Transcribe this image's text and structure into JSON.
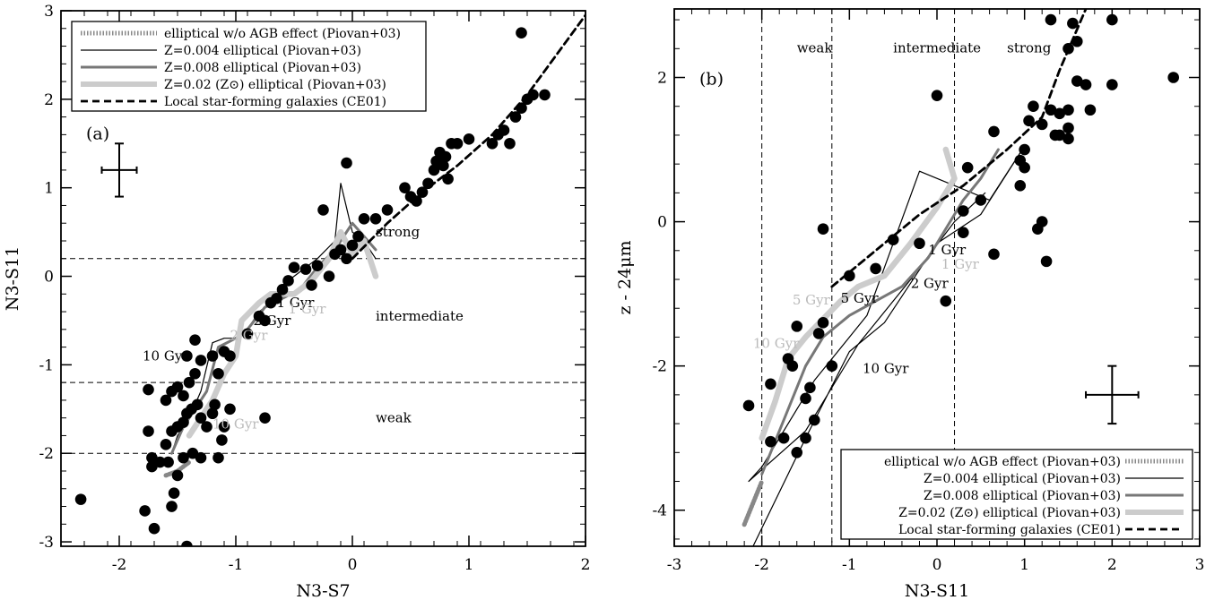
{
  "chart_data": [
    {
      "type": "scatter",
      "panel_label": "(a)",
      "xlabel": "N3-S7",
      "ylabel": "N3-S11",
      "xlim": [
        -2.5,
        2
      ],
      "ylim": [
        -3.05,
        3
      ],
      "xticks": [
        -2,
        -1,
        0,
        1,
        2
      ],
      "yticks": [
        -3,
        -2,
        -1,
        0,
        1,
        2,
        3
      ],
      "xtick_labels": [
        "-2",
        "-1",
        "0",
        "1",
        "2"
      ],
      "ytick_labels": [
        "-3",
        "-2",
        "-1",
        "0",
        "1",
        "2",
        "3"
      ],
      "hlines": [
        0.2,
        -1.2,
        -2.0
      ],
      "regions": [
        {
          "label": "strong",
          "x": 0.2,
          "y": 0.45
        },
        {
          "label": "intermediate",
          "x": 0.2,
          "y": -0.5
        },
        {
          "label": "weak",
          "x": 0.2,
          "y": -1.65
        }
      ],
      "error_bar": {
        "x": -2.0,
        "y": 1.2,
        "dx": 0.15,
        "dy": 0.3
      },
      "legend": {
        "placement": "top-left",
        "entries": [
          {
            "label": "elliptical w/o AGB effect (Piovan+03)",
            "style": "hatched",
            "color": "#888888"
          },
          {
            "label": "Z=0.004 elliptical (Piovan+03)",
            "style": "thin",
            "color": "#000000"
          },
          {
            "label": "Z=0.008 elliptical (Piovan+03)",
            "style": "medium",
            "color": "#777777"
          },
          {
            "label": "Z=0.02 (Z⊙) elliptical (Piovan+03)",
            "style": "thick",
            "color": "#cccccc"
          },
          {
            "label": "Local star-forming galaxies (CE01)",
            "style": "dashed",
            "color": "#000000"
          }
        ]
      },
      "series": [
        {
          "name": "Z=0.004 elliptical (Piovan+03)",
          "x": [
            -1.55,
            -1.5,
            -1.4,
            -1.3,
            -1.2,
            -1.1,
            -1.0,
            -0.9,
            -0.8,
            -0.7,
            -0.6,
            -0.5,
            -0.3,
            -0.15,
            -0.1,
            0.0,
            0.1,
            0.2
          ],
          "y": [
            -2.0,
            -1.8,
            -1.6,
            -1.3,
            -0.75,
            -0.7,
            -0.7,
            -0.6,
            -0.4,
            -0.3,
            -0.1,
            0.0,
            0.2,
            0.4,
            1.05,
            0.5,
            0.4,
            0.2
          ]
        },
        {
          "name": "Z=0.008 elliptical (Piovan+03)",
          "x": [
            -1.55,
            -1.45,
            -1.35,
            -1.25,
            -1.15,
            -1.0,
            -0.9,
            -0.75,
            -0.6,
            -0.45,
            -0.3,
            -0.15,
            0.0,
            0.1,
            0.2
          ],
          "y": [
            -2.0,
            -1.7,
            -1.5,
            -1.3,
            -0.8,
            -0.7,
            -0.6,
            -0.35,
            -0.25,
            -0.15,
            0.1,
            0.3,
            0.6,
            0.45,
            0.3
          ]
        },
        {
          "name": "Z=0.02 (Z⊙) elliptical (Piovan+03)",
          "x": [
            -1.4,
            -1.3,
            -1.2,
            -1.1,
            -1.0,
            -0.95,
            -0.8,
            -0.7,
            -0.5,
            -0.35,
            -0.2,
            -0.1,
            0.0,
            0.1,
            0.2
          ],
          "y": [
            -1.8,
            -1.6,
            -1.4,
            -1.1,
            -0.9,
            -0.5,
            -0.3,
            -0.2,
            -0.2,
            -0.05,
            0.2,
            0.5,
            0.25,
            0.4,
            0.0
          ]
        },
        {
          "name": "elliptical w/o AGB effect (Piovan+03)",
          "x": [
            -1.6,
            -1.5,
            -1.4
          ],
          "y": [
            -2.25,
            -2.2,
            -2.1
          ]
        },
        {
          "name": "Local star-forming galaxies (CE01)",
          "x": [
            0.0,
            0.3,
            0.6,
            0.9,
            1.2,
            1.5,
            1.75,
            2.0
          ],
          "y": [
            0.2,
            0.6,
            0.95,
            1.25,
            1.6,
            2.05,
            2.5,
            2.95
          ]
        }
      ],
      "age_labels": [
        {
          "label": "1 Gyr",
          "x": -0.65,
          "y": -0.35,
          "color": "#000000"
        },
        {
          "label": "1 Gyr",
          "x": -0.55,
          "y": -0.42,
          "color": "#bbbbbb"
        },
        {
          "label": "2 Gyr",
          "x": -0.85,
          "y": -0.55,
          "color": "#000000"
        },
        {
          "label": "2 Gyr",
          "x": -1.05,
          "y": -0.72,
          "color": "#bbbbbb"
        },
        {
          "label": "10 Gyr",
          "x": -1.8,
          "y": -0.95,
          "color": "#000000"
        },
        {
          "label": "10 Gyr",
          "x": -1.2,
          "y": -1.72,
          "color": "#bbbbbb"
        }
      ],
      "points": [
        [
          -2.33,
          -2.52
        ],
        [
          -1.78,
          -2.65
        ],
        [
          -1.7,
          -2.85
        ],
        [
          -1.42,
          -3.05
        ],
        [
          -1.55,
          -2.6
        ],
        [
          -1.53,
          -2.45
        ],
        [
          -1.5,
          -2.25
        ],
        [
          -1.72,
          -2.05
        ],
        [
          -1.65,
          -2.1
        ],
        [
          -1.72,
          -2.15
        ],
        [
          -1.58,
          -2.1
        ],
        [
          -1.45,
          -2.05
        ],
        [
          -1.37,
          -2.0
        ],
        [
          -1.3,
          -2.05
        ],
        [
          -1.15,
          -2.05
        ],
        [
          -1.75,
          -1.75
        ],
        [
          -1.6,
          -1.9
        ],
        [
          -1.55,
          -1.75
        ],
        [
          -1.5,
          -1.7
        ],
        [
          -1.45,
          -1.65
        ],
        [
          -1.42,
          -1.55
        ],
        [
          -1.38,
          -1.5
        ],
        [
          -1.33,
          -1.45
        ],
        [
          -1.3,
          -1.6
        ],
        [
          -1.25,
          -1.7
        ],
        [
          -1.2,
          -1.55
        ],
        [
          -1.18,
          -1.45
        ],
        [
          -1.12,
          -1.85
        ],
        [
          -1.1,
          -1.7
        ],
        [
          -1.05,
          -1.5
        ],
        [
          -1.75,
          -1.28
        ],
        [
          -1.6,
          -1.4
        ],
        [
          -1.55,
          -1.3
        ],
        [
          -1.5,
          -1.25
        ],
        [
          -1.45,
          -1.35
        ],
        [
          -1.4,
          -1.2
        ],
        [
          -1.35,
          -1.1
        ],
        [
          -1.42,
          -0.9
        ],
        [
          -1.35,
          -0.72
        ],
        [
          -1.3,
          -0.95
        ],
        [
          -1.2,
          -0.9
        ],
        [
          -1.15,
          -1.1
        ],
        [
          -1.1,
          -0.85
        ],
        [
          -1.05,
          -0.9
        ],
        [
          -0.9,
          -0.65
        ],
        [
          -0.8,
          -0.45
        ],
        [
          -0.75,
          -0.5
        ],
        [
          -0.75,
          -1.6
        ],
        [
          -0.7,
          -0.3
        ],
        [
          -0.65,
          -0.25
        ],
        [
          -0.6,
          -0.15
        ],
        [
          -0.55,
          -0.05
        ],
        [
          -0.5,
          0.1
        ],
        [
          -0.4,
          0.08
        ],
        [
          -0.35,
          -0.1
        ],
        [
          -0.3,
          0.12
        ],
        [
          -0.2,
          0.0
        ],
        [
          -0.15,
          0.25
        ],
        [
          -0.1,
          0.3
        ],
        [
          -0.05,
          0.2
        ],
        [
          0.0,
          0.35
        ],
        [
          0.05,
          0.45
        ],
        [
          0.1,
          0.65
        ],
        [
          0.2,
          0.65
        ],
        [
          0.3,
          0.75
        ],
        [
          -0.25,
          0.75
        ],
        [
          -0.05,
          1.28
        ],
        [
          0.5,
          0.9
        ],
        [
          0.55,
          0.85
        ],
        [
          0.6,
          0.95
        ],
        [
          0.45,
          1.0
        ],
        [
          0.65,
          1.05
        ],
        [
          0.7,
          1.2
        ],
        [
          0.72,
          1.3
        ],
        [
          0.75,
          1.4
        ],
        [
          0.78,
          1.25
        ],
        [
          0.8,
          1.35
        ],
        [
          0.82,
          1.1
        ],
        [
          0.85,
          1.5
        ],
        [
          0.9,
          1.5
        ],
        [
          1.0,
          1.55
        ],
        [
          1.2,
          1.5
        ],
        [
          1.25,
          1.6
        ],
        [
          1.3,
          1.65
        ],
        [
          1.35,
          1.5
        ],
        [
          1.4,
          1.8
        ],
        [
          1.45,
          1.9
        ],
        [
          1.5,
          2.0
        ],
        [
          1.55,
          2.05
        ],
        [
          1.65,
          2.05
        ],
        [
          1.45,
          2.75
        ]
      ]
    },
    {
      "type": "scatter",
      "panel_label": "(b)",
      "xlabel": "N3-S11",
      "ylabel": "z - 24μm",
      "xlim": [
        -3,
        3
      ],
      "ylim": [
        -4.5,
        2.95
      ],
      "xticks": [
        -3,
        -2,
        -1,
        0,
        1,
        2,
        3
      ],
      "yticks": [
        -4,
        -2,
        0,
        2
      ],
      "xtick_labels": [
        "-3",
        "-2",
        "-1",
        "0",
        "1",
        "2",
        "3"
      ],
      "ytick_labels": [
        "-4",
        "-2",
        "0",
        "2"
      ],
      "vlines": [
        -2.0,
        -1.2,
        0.2
      ],
      "regions": [
        {
          "label": "weak",
          "x": -1.6,
          "y": 2.35
        },
        {
          "label": "intermediate",
          "x": -0.5,
          "y": 2.35
        },
        {
          "label": "strong",
          "x": 0.8,
          "y": 2.35
        }
      ],
      "error_bar": {
        "x": 2.0,
        "y": -2.4,
        "dx": 0.3,
        "dy": 0.4
      },
      "legend": {
        "placement": "bottom-right",
        "entries": [
          {
            "label": "elliptical w/o AGB effect (Piovan+03)",
            "style": "hatched",
            "color": "#888888"
          },
          {
            "label": "Z=0.004 elliptical (Piovan+03)",
            "style": "thin",
            "color": "#000000"
          },
          {
            "label": "Z=0.008 elliptical (Piovan+03)",
            "style": "medium",
            "color": "#777777"
          },
          {
            "label": "Z=0.02 (Z⊙) elliptical (Piovan+03)",
            "style": "thick",
            "color": "#cccccc"
          },
          {
            "label": "Local star-forming galaxies (CE01)",
            "style": "dashed",
            "color": "#000000"
          }
        ]
      },
      "series": [
        {
          "name": "Z=0.004 elliptical (Piovan+03)",
          "x": [
            -2.1,
            -1.5,
            -1.0,
            -0.6,
            0.0,
            0.5,
            1.0,
            0.6,
            -0.2,
            -0.8,
            -1.4,
            -2.0,
            -2.15,
            -1.5,
            -0.9,
            -0.3,
            0.2,
            0.55
          ],
          "y": [
            -4.5,
            -3.0,
            -1.8,
            -1.4,
            -0.3,
            0.1,
            1.05,
            0.3,
            0.7,
            -1.3,
            -2.2,
            -3.4,
            -3.6,
            -2.9,
            -1.7,
            -0.8,
            0.0,
            0.4
          ]
        },
        {
          "name": "Z=0.008 elliptical (Piovan+03)",
          "x": [
            -2.0,
            -1.7,
            -1.5,
            -1.3,
            -1.0,
            -0.7,
            -0.4,
            -0.1,
            0.1,
            0.3,
            0.5,
            0.7
          ],
          "y": [
            -3.5,
            -2.6,
            -2.0,
            -1.6,
            -1.3,
            -1.1,
            -0.9,
            -0.5,
            -0.1,
            0.3,
            0.6,
            1.0
          ]
        },
        {
          "name": "Z=0.02 (Z⊙) elliptical (Piovan+03)",
          "x": [
            -2.0,
            -1.85,
            -1.7,
            -1.5,
            -1.3,
            -1.1,
            -0.9,
            -0.6,
            -0.3,
            0.0,
            0.2,
            0.1
          ],
          "y": [
            -3.0,
            -2.5,
            -1.9,
            -1.6,
            -1.35,
            -1.1,
            -0.9,
            -0.75,
            -0.3,
            0.2,
            0.6,
            1.0
          ]
        },
        {
          "name": "elliptical w/o AGB effect (Piovan+03)",
          "x": [
            -2.2,
            -2.1,
            -2.0
          ],
          "y": [
            -4.2,
            -3.9,
            -3.6
          ]
        },
        {
          "name": "Local star-forming galaxies (CE01)",
          "x": [
            -1.2,
            -0.7,
            -0.2,
            0.3,
            0.8,
            1.2,
            1.4,
            1.7
          ],
          "y": [
            -0.9,
            -0.4,
            0.1,
            0.5,
            1.0,
            1.45,
            2.1,
            2.95
          ]
        }
      ],
      "age_labels": [
        {
          "label": "1 Gyr",
          "x": -0.1,
          "y": -0.45,
          "color": "#000000"
        },
        {
          "label": "1 Gyr",
          "x": 0.05,
          "y": -0.65,
          "color": "#bbbbbb"
        },
        {
          "label": "2 Gyr",
          "x": -0.3,
          "y": -0.92,
          "color": "#000000"
        },
        {
          "label": "5 Gyr",
          "x": -1.1,
          "y": -1.12,
          "color": "#000000"
        },
        {
          "label": "5 Gyr",
          "x": -1.65,
          "y": -1.15,
          "color": "#bbbbbb"
        },
        {
          "label": "10 Gyr",
          "x": -2.1,
          "y": -1.75,
          "color": "#bbbbbb"
        },
        {
          "label": "10 Gyr",
          "x": -0.85,
          "y": -2.1,
          "color": "#000000"
        }
      ],
      "points": [
        [
          -2.15,
          -2.55
        ],
        [
          -1.9,
          -2.25
        ],
        [
          -1.9,
          -3.05
        ],
        [
          -1.75,
          -3.0
        ],
        [
          -1.6,
          -3.2
        ],
        [
          -1.5,
          -3.0
        ],
        [
          -1.4,
          -2.75
        ],
        [
          -1.5,
          -2.45
        ],
        [
          -1.45,
          -2.3
        ],
        [
          -1.65,
          -2.0
        ],
        [
          -1.7,
          -1.9
        ],
        [
          -1.6,
          -1.45
        ],
        [
          -1.3,
          -1.4
        ],
        [
          -1.35,
          -1.55
        ],
        [
          -1.2,
          -2.0
        ],
        [
          -1.3,
          -0.1
        ],
        [
          -1.0,
          -0.75
        ],
        [
          -0.7,
          -0.65
        ],
        [
          -0.5,
          -0.25
        ],
        [
          -0.2,
          -0.3
        ],
        [
          0.0,
          1.75
        ],
        [
          0.1,
          -1.1
        ],
        [
          0.3,
          -0.15
        ],
        [
          0.35,
          0.75
        ],
        [
          0.65,
          1.25
        ],
        [
          0.65,
          -0.45
        ],
        [
          0.95,
          0.85
        ],
        [
          0.95,
          0.5
        ],
        [
          1.0,
          0.75
        ],
        [
          1.0,
          1.0
        ],
        [
          1.05,
          1.4
        ],
        [
          1.1,
          1.6
        ],
        [
          1.2,
          0.0
        ],
        [
          1.15,
          -0.1
        ],
        [
          1.3,
          1.55
        ],
        [
          1.35,
          1.2
        ],
        [
          1.4,
          1.2
        ],
        [
          1.5,
          2.4
        ],
        [
          1.5,
          1.55
        ],
        [
          1.5,
          1.3
        ],
        [
          1.5,
          1.15
        ],
        [
          1.55,
          2.75
        ],
        [
          1.6,
          2.5
        ],
        [
          1.6,
          1.95
        ],
        [
          1.7,
          1.9
        ],
        [
          1.75,
          1.55
        ],
        [
          1.3,
          2.8
        ],
        [
          1.2,
          1.35
        ],
        [
          1.4,
          1.5
        ],
        [
          1.25,
          -0.55
        ],
        [
          2.0,
          2.8
        ],
        [
          2.0,
          1.9
        ],
        [
          2.7,
          2.0
        ],
        [
          0.5,
          0.3
        ],
        [
          0.3,
          0.15
        ]
      ]
    }
  ]
}
